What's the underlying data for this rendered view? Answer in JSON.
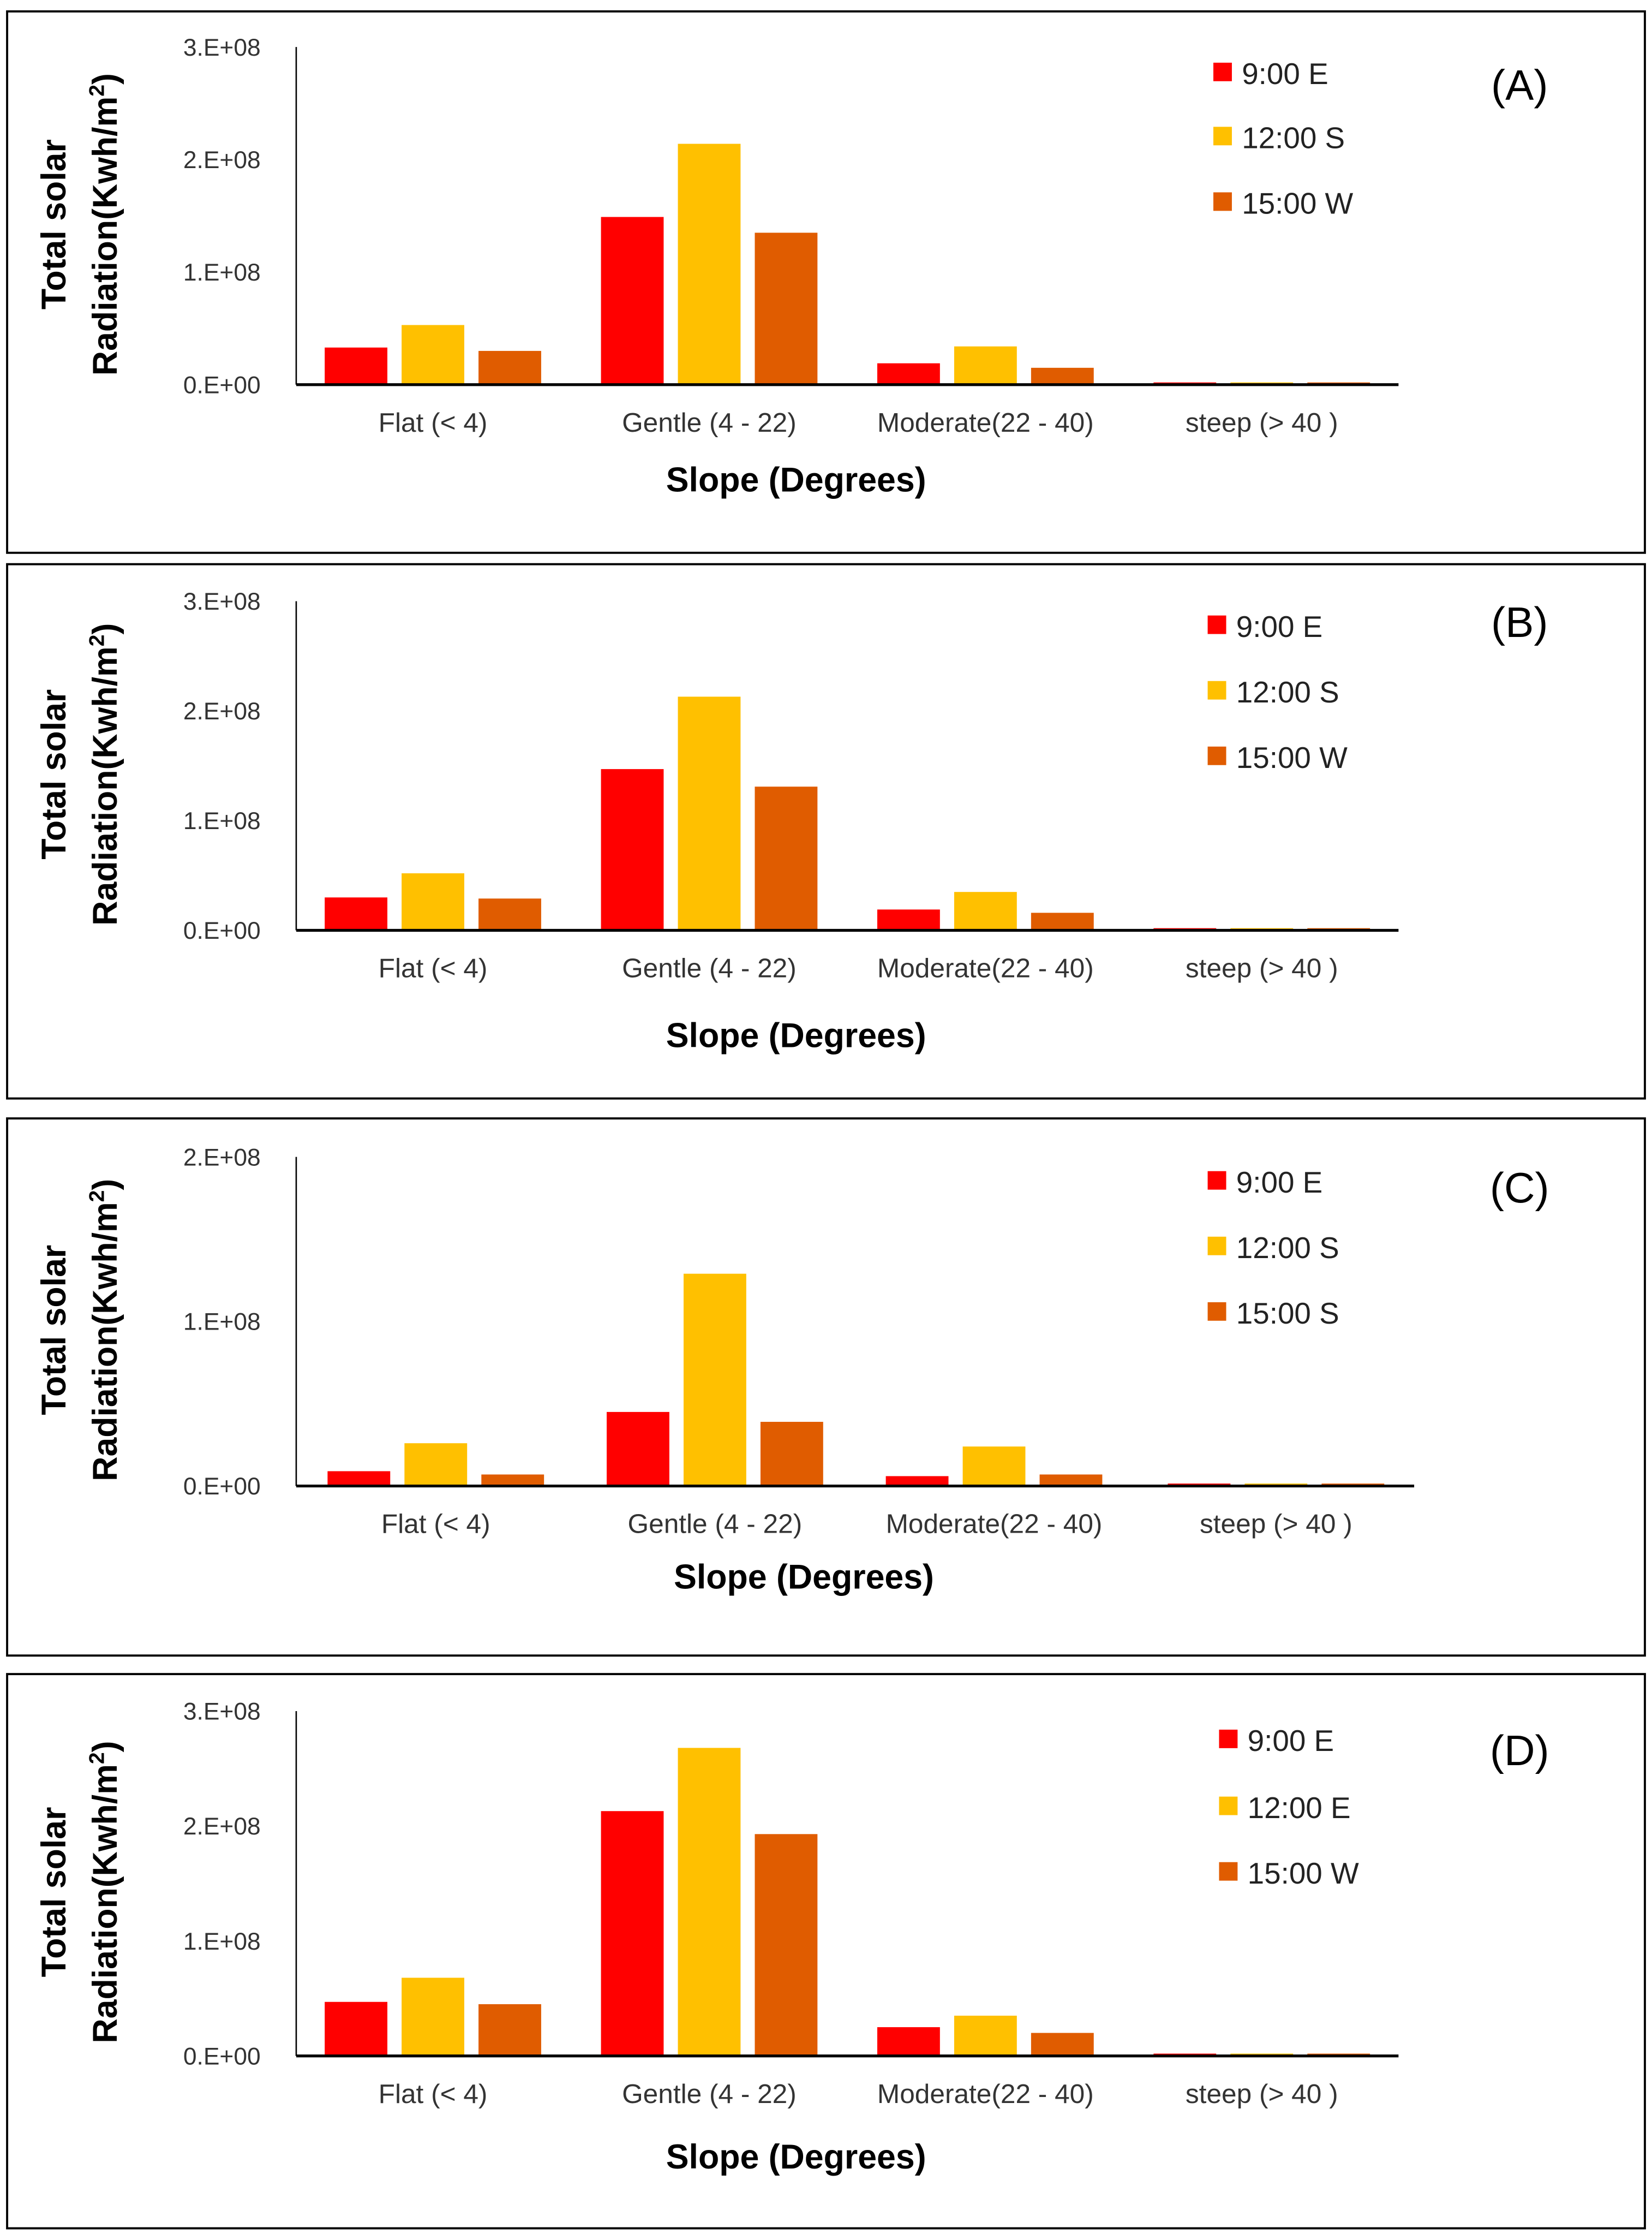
{
  "chart_data": [
    {
      "type": "bar",
      "panel_label": "(A)",
      "categories": [
        "Flat (< 4)",
        "Gentle (4 - 22)",
        "Moderate(22 - 40)",
        "steep (> 40 )"
      ],
      "series": [
        {
          "name": "9:00 E",
          "color": "#ff0000",
          "values": [
            33000000.0,
            149000000.0,
            19000000.0,
            2000000.0
          ]
        },
        {
          "name": "12:00 S",
          "color": "#ffc000",
          "values": [
            53000000.0,
            214000000.0,
            34000000.0,
            2000000.0
          ]
        },
        {
          "name": "15:00 W",
          "color": "#e05c00",
          "values": [
            30000000.0,
            135000000.0,
            15000000.0,
            2000000.0
          ]
        }
      ],
      "xlabel": "Slope (Degrees)",
      "ylabel_line1": "Total solar",
      "ylabel_line2": "Radiation(Kwh/m",
      "ylabel_sup": "2",
      "ylabel_close": ")",
      "ylim": [
        0,
        300000000.0
      ],
      "yticks": [
        {
          "value": 0,
          "label": "0.E+00"
        },
        {
          "value": 100000000.0,
          "label": "1.E+08"
        },
        {
          "value": 200000000.0,
          "label": "2.E+08"
        },
        {
          "value": 300000000.0,
          "label": "3.E+08"
        }
      ],
      "legend_position": "top-right",
      "grid": false
    },
    {
      "type": "bar",
      "panel_label": "(B)",
      "categories": [
        "Flat (< 4)",
        "Gentle (4 - 22)",
        "Moderate(22 - 40)",
        "steep (> 40 )"
      ],
      "series": [
        {
          "name": "9:00 E",
          "color": "#ff0000",
          "values": [
            30000000.0,
            147000000.0,
            19000000.0,
            2000000.0
          ]
        },
        {
          "name": "12:00 S",
          "color": "#ffc000",
          "values": [
            52000000.0,
            213000000.0,
            35000000.0,
            2000000.0
          ]
        },
        {
          "name": "15:00 W",
          "color": "#e05c00",
          "values": [
            29000000.0,
            131000000.0,
            16000000.0,
            2000000.0
          ]
        }
      ],
      "xlabel": "Slope (Degrees)",
      "ylabel_line1": "Total solar",
      "ylabel_line2": "Radiation(Kwh/m",
      "ylabel_sup": "2",
      "ylabel_close": ")",
      "ylim": [
        0,
        300000000.0
      ],
      "yticks": [
        {
          "value": 0,
          "label": "0.E+00"
        },
        {
          "value": 100000000.0,
          "label": "1.E+08"
        },
        {
          "value": 200000000.0,
          "label": "2.E+08"
        },
        {
          "value": 300000000.0,
          "label": "3.E+08"
        }
      ],
      "legend_position": "top-right",
      "grid": false
    },
    {
      "type": "bar",
      "panel_label": "(C)",
      "categories": [
        "Flat (< 4)",
        "Gentle (4 - 22)",
        "Moderate(22 - 40)",
        "steep (> 40 )"
      ],
      "series": [
        {
          "name": "9:00 E",
          "color": "#ff0000",
          "values": [
            9000000.0,
            45000000.0,
            6000000.0,
            1500000.0
          ]
        },
        {
          "name": "12:00 S",
          "color": "#ffc000",
          "values": [
            26000000.0,
            129000000.0,
            24000000.0,
            1500000.0
          ]
        },
        {
          "name": "15:00 S",
          "color": "#e05c00",
          "values": [
            7000000.0,
            39000000.0,
            7000000.0,
            1500000.0
          ]
        }
      ],
      "xlabel": "Slope (Degrees)",
      "ylabel_line1": "Total solar",
      "ylabel_line2": "Radiation(Kwh/m",
      "ylabel_sup": "2",
      "ylabel_close": ")",
      "ylim": [
        0,
        200000000.0
      ],
      "yticks": [
        {
          "value": 0,
          "label": "0.E+00"
        },
        {
          "value": 100000000.0,
          "label": "1.E+08"
        },
        {
          "value": 200000000.0,
          "label": "2.E+08"
        }
      ],
      "legend_position": "top-right",
      "grid": false
    },
    {
      "type": "bar",
      "panel_label": "(D)",
      "categories": [
        "Flat (< 4)",
        "Gentle (4 - 22)",
        "Moderate(22 - 40)",
        "steep (> 40 )"
      ],
      "series": [
        {
          "name": "9:00 E",
          "color": "#ff0000",
          "values": [
            47000000.0,
            213000000.0,
            25000000.0,
            2000000.0
          ]
        },
        {
          "name": "12:00 E",
          "color": "#ffc000",
          "values": [
            68000000.0,
            268000000.0,
            35000000.0,
            2000000.0
          ]
        },
        {
          "name": "15:00 W",
          "color": "#e05c00",
          "values": [
            45000000.0,
            193000000.0,
            20000000.0,
            2000000.0
          ]
        }
      ],
      "xlabel": "Slope (Degrees)",
      "ylabel_line1": "Total solar",
      "ylabel_line2": "Radiation(Kwh/m",
      "ylabel_sup": "2",
      "ylabel_close": ")",
      "ylim": [
        0,
        300000000.0
      ],
      "yticks": [
        {
          "value": 0,
          "label": "0.E+00"
        },
        {
          "value": 100000000.0,
          "label": "1.E+08"
        },
        {
          "value": 200000000.0,
          "label": "2.E+08"
        },
        {
          "value": 300000000.0,
          "label": "3.E+08"
        }
      ],
      "legend_position": "top-right",
      "grid": false
    }
  ]
}
